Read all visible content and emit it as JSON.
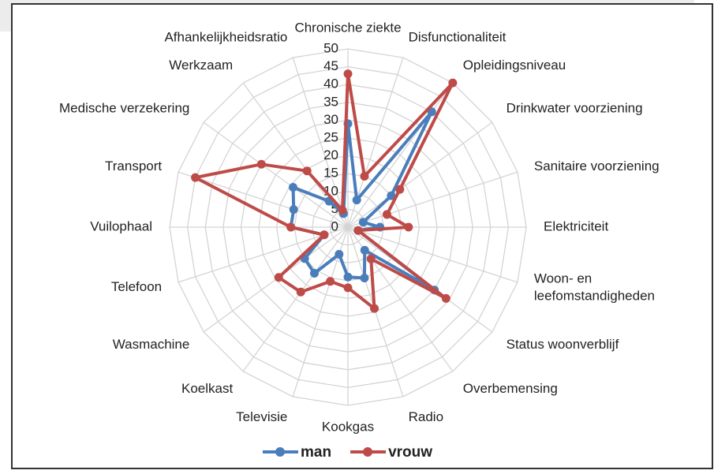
{
  "chart_data": {
    "type": "radar",
    "categories": [
      "Chronische ziekte",
      "Disfunctionaliteit",
      "Opleidingsniveau",
      "Drinkwater voorziening",
      "Sanitaire voorziening",
      "Elektriciteit",
      "Woon- en\nleefomstandigheden",
      "Status woonverblijf",
      "Overbemensing",
      "Radio",
      "Kookgas",
      "Televisie",
      "Koelkast",
      "Wasmachine",
      "Telefoon",
      "Vuilophaal",
      "Transport",
      "Medische verzekering",
      "Werkzaam",
      "Afhankelijkheidsratio"
    ],
    "series": [
      {
        "name": "man",
        "color": "#4a7ebb",
        "values": [
          29,
          8,
          40,
          15,
          4.5,
          9,
          3,
          30,
          8,
          15,
          14,
          8,
          16,
          15,
          7,
          16,
          16,
          19,
          9,
          4
        ]
      },
      {
        "name": "vrouw",
        "color": "#be4b48",
        "values": [
          43,
          15,
          50,
          18,
          11.5,
          17,
          3,
          34,
          11,
          24,
          17,
          16,
          22.5,
          24,
          7,
          16,
          45,
          30,
          19.5,
          5
        ]
      }
    ],
    "ylim": [
      0,
      50
    ],
    "yticks": [
      0,
      5,
      10,
      15,
      20,
      25,
      30,
      35,
      40,
      45,
      50
    ],
    "grid": true,
    "legend": "bottom"
  }
}
